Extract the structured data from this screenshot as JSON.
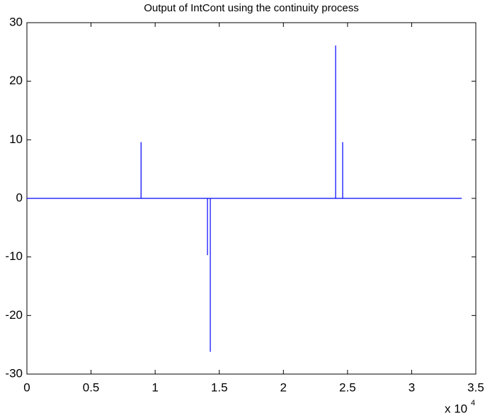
{
  "chart_data": {
    "type": "line",
    "title": "Output of IntCont using the continuity process",
    "x_multiplier": "x 10",
    "x_exponent": "4",
    "x": [
      0,
      8900,
      8900,
      8900,
      14080,
      14080,
      14080,
      14300,
      14300,
      14300,
      24070,
      24070,
      24070,
      24620,
      24620,
      24620,
      33900
    ],
    "series": [
      {
        "color": "#0000ff",
        "values": [
          0,
          0,
          9.6,
          0,
          0,
          -9.7,
          0,
          0,
          -26.2,
          0,
          0,
          26.1,
          0,
          0,
          9.6,
          0,
          0
        ]
      }
    ],
    "xlim": [
      0,
      35000
    ],
    "xticks": [
      {
        "value": 0,
        "label": "0"
      },
      {
        "value": 5000,
        "label": "0.5"
      },
      {
        "value": 10000,
        "label": "1"
      },
      {
        "value": 15000,
        "label": "1.5"
      },
      {
        "value": 20000,
        "label": "2"
      },
      {
        "value": 25000,
        "label": "2.5"
      },
      {
        "value": 30000,
        "label": "3"
      },
      {
        "value": 35000,
        "label": "3.5"
      }
    ],
    "ylim": [
      -30,
      30
    ],
    "yticks": [
      -30,
      -20,
      -10,
      0,
      10,
      20,
      30
    ],
    "grid": false
  }
}
